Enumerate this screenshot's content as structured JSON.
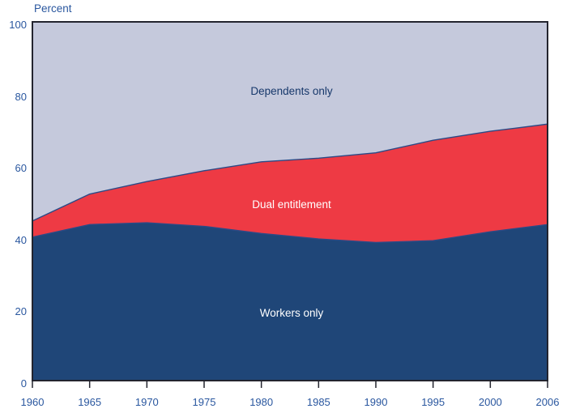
{
  "chart_data": {
    "type": "area",
    "stacked": true,
    "title": "",
    "ylabel": "Percent",
    "xlabel": "",
    "ylim": [
      0,
      100
    ],
    "y_ticks": [
      0,
      20,
      40,
      60,
      80,
      100
    ],
    "x_categories": [
      "1960",
      "1965",
      "1970",
      "1975",
      "1980",
      "1985",
      "1990",
      "1995",
      "2000",
      "2006"
    ],
    "values_are": "cumulative_stack_top_percent",
    "series": [
      {
        "name": "Workers only",
        "values": [
          40,
          43.5,
          44,
          43,
          41,
          39.5,
          38.5,
          39,
          41.5,
          43.5
        ],
        "color": "#1f4678",
        "label_color": "#ffffff"
      },
      {
        "name": "Dual entitlement",
        "values": [
          44.5,
          52,
          55.5,
          58.5,
          61,
          62,
          63.5,
          67,
          69.5,
          71.5
        ],
        "color": "#ee3a44",
        "label_color": "#ffffff"
      },
      {
        "name": "Dependents only",
        "values": [
          100,
          100,
          100,
          100,
          100,
          100,
          100,
          100,
          100,
          100
        ],
        "color": "#c5c9dc",
        "label_color": "#17386b"
      }
    ],
    "grid": false,
    "legend": "inline-area-labels",
    "frame_color": "#23242e",
    "boundary_stroke": "#2b4a86",
    "axis_text_color": "#2a579f"
  }
}
